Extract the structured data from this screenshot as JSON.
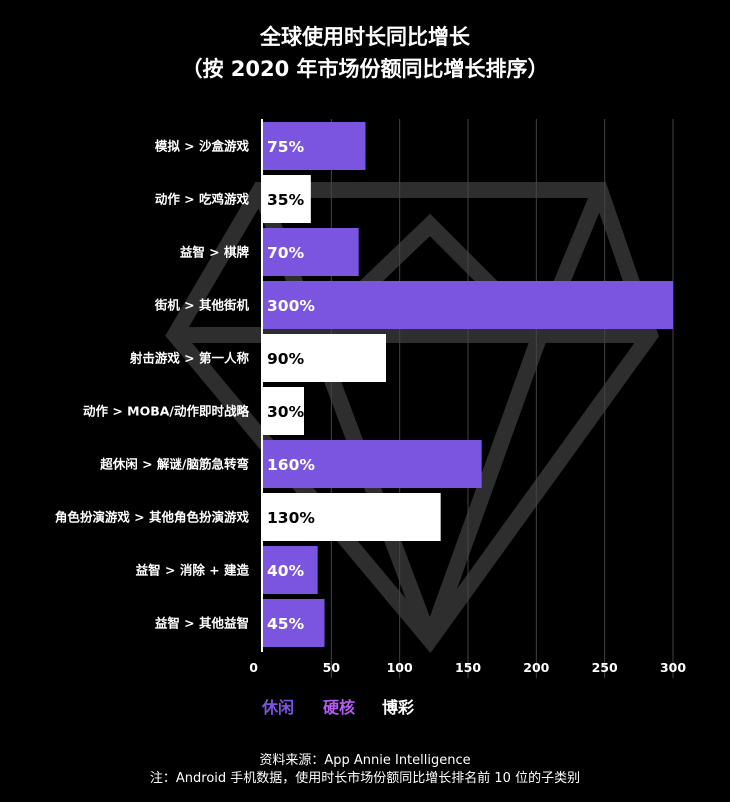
{
  "title_line1": "全球使用时长同比增长",
  "title_line2": "（按 2020 年市场份额同比增长排序）",
  "legend": [
    {
      "label": "休闲",
      "color": "#7b55e0"
    },
    {
      "label": "硬核",
      "color": "#b45cf5"
    },
    {
      "label": "博彩",
      "color": "#ffffff"
    }
  ],
  "source": "资料来源：App Annie Intelligence",
  "note": "注：Android 手机数据，使用时长市场份额同比增长排名前 10 位的子类别",
  "chart_data": {
    "type": "bar",
    "orientation": "horizontal",
    "title": "全球使用时长同比增长（按 2020 年市场份额同比增长排序）",
    "categories": [
      "模拟 > 沙盒游戏",
      "动作 > 吃鸡游戏",
      "益智 > 棋牌",
      "街机 > 其他街机",
      "射击游戏 > 第一人称",
      "动作 > MOBA/动作即时战略",
      "超休闲 > 解谜/脑筋急转弯",
      "角色扮演游戏 > 其他角色扮演游戏",
      "益智 > 消除 + 建造",
      "益智 > 其他益智"
    ],
    "values": [
      75,
      35,
      70,
      300,
      90,
      30,
      160,
      130,
      40,
      45
    ],
    "data_labels": [
      "75%",
      "35%",
      "70%",
      "300%",
      "90%",
      "30%",
      "160%",
      "130%",
      "40%",
      "45%"
    ],
    "bar_colors": [
      "#7b55e0",
      "#ffffff",
      "#7b55e0",
      "#7b55e0",
      "#ffffff",
      "#ffffff",
      "#7b55e0",
      "#ffffff",
      "#7b55e0",
      "#7b55e0"
    ],
    "xlim": [
      0,
      300
    ],
    "xticks": [
      0,
      50,
      100,
      150,
      200,
      250,
      300
    ],
    "grid": true
  }
}
